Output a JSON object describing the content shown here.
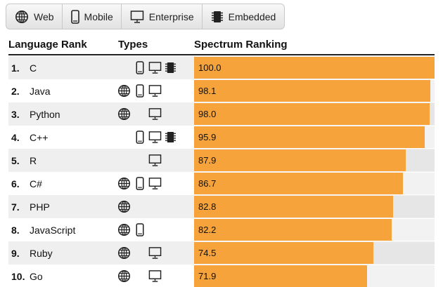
{
  "filters": [
    {
      "label": "Web",
      "icon": "globe-icon"
    },
    {
      "label": "Mobile",
      "icon": "mobile-phone-icon"
    },
    {
      "label": "Enterprise",
      "icon": "monitor-icon"
    },
    {
      "label": "Embedded",
      "icon": "chip-icon"
    }
  ],
  "headers": {
    "rank": "Language Rank",
    "types": "Types",
    "spectrum": "Spectrum Ranking"
  },
  "colors": {
    "bar": "#f5a33a",
    "stripe": "#efefef"
  },
  "ranking_max": 100,
  "rows": [
    {
      "rank": "1.",
      "name": "C",
      "score": "100.0",
      "value": 100.0,
      "types": [
        "mobile",
        "enterprise",
        "embedded"
      ]
    },
    {
      "rank": "2.",
      "name": "Java",
      "score": "98.1",
      "value": 98.1,
      "types": [
        "web",
        "mobile",
        "enterprise"
      ]
    },
    {
      "rank": "3.",
      "name": "Python",
      "score": "98.0",
      "value": 98.0,
      "types": [
        "web",
        "enterprise"
      ]
    },
    {
      "rank": "4.",
      "name": "C++",
      "score": "95.9",
      "value": 95.9,
      "types": [
        "mobile",
        "enterprise",
        "embedded"
      ]
    },
    {
      "rank": "5.",
      "name": "R",
      "score": "87.9",
      "value": 87.9,
      "types": [
        "enterprise"
      ]
    },
    {
      "rank": "6.",
      "name": "C#",
      "score": "86.7",
      "value": 86.7,
      "types": [
        "web",
        "mobile",
        "enterprise"
      ]
    },
    {
      "rank": "7.",
      "name": "PHP",
      "score": "82.8",
      "value": 82.8,
      "types": [
        "web"
      ]
    },
    {
      "rank": "8.",
      "name": "JavaScript",
      "score": "82.2",
      "value": 82.2,
      "types": [
        "web",
        "mobile"
      ]
    },
    {
      "rank": "9.",
      "name": "Ruby",
      "score": "74.5",
      "value": 74.5,
      "types": [
        "web",
        "enterprise"
      ]
    },
    {
      "rank": "10.",
      "name": "Go",
      "score": "71.9",
      "value": 71.9,
      "types": [
        "web",
        "enterprise"
      ]
    }
  ]
}
